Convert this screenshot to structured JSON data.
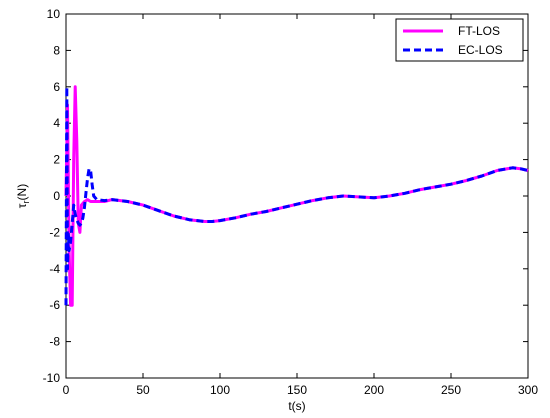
{
  "chart_data": {
    "type": "line",
    "title": "",
    "xlabel": "t(s)",
    "ylabel_main": "τ",
    "ylabel_sub": "r",
    "ylabel_tail": "(N)",
    "xlim": [
      0,
      300
    ],
    "ylim": [
      -10,
      10
    ],
    "xticks": [
      0,
      50,
      100,
      150,
      200,
      250,
      300
    ],
    "yticks": [
      -10,
      -8,
      -6,
      -4,
      -2,
      0,
      2,
      4,
      6,
      8,
      10
    ],
    "grid": false,
    "legend_position": "top-right",
    "series": [
      {
        "name": "FT-LOS",
        "color": "#ff00ff",
        "style": "solid",
        "x": [
          0,
          1,
          2,
          3,
          4,
          5,
          6,
          7,
          8,
          9,
          10,
          12,
          14,
          16,
          20,
          25,
          30,
          40,
          50,
          60,
          70,
          80,
          90,
          95,
          100,
          110,
          120,
          130,
          140,
          150,
          160,
          170,
          180,
          190,
          200,
          210,
          220,
          230,
          240,
          250,
          260,
          270,
          280,
          290,
          295,
          300
        ],
        "y": [
          0,
          5,
          -3,
          -6,
          -6,
          2,
          6,
          3,
          -1.5,
          -2,
          -0.5,
          -0.3,
          -0.2,
          -0.3,
          -0.3,
          -0.3,
          -0.2,
          -0.3,
          -0.5,
          -0.8,
          -1.1,
          -1.3,
          -1.4,
          -1.4,
          -1.35,
          -1.2,
          -1.0,
          -0.85,
          -0.65,
          -0.45,
          -0.25,
          -0.1,
          0,
          -0.05,
          -0.1,
          0,
          0.15,
          0.35,
          0.5,
          0.65,
          0.85,
          1.1,
          1.4,
          1.55,
          1.5,
          1.4
        ]
      },
      {
        "name": "EC-LOS",
        "color": "#0000ff",
        "style": "dashed",
        "x": [
          0,
          0.5,
          1,
          1.5,
          2,
          3,
          4,
          5,
          6,
          7,
          8,
          9,
          10,
          11,
          12,
          13,
          14,
          15,
          16,
          17,
          18,
          20,
          25,
          30,
          40,
          50,
          60,
          70,
          80,
          90,
          95,
          100,
          110,
          120,
          130,
          140,
          150,
          160,
          170,
          180,
          190,
          200,
          210,
          220,
          230,
          240,
          250,
          260,
          270,
          280,
          290,
          295,
          300
        ],
        "y": [
          -6,
          6,
          -4,
          -2,
          -3,
          -2.5,
          -1.5,
          -0.5,
          -1,
          -1.3,
          -1.5,
          -1.6,
          -1.5,
          -1.2,
          -0.6,
          0.2,
          1.0,
          1.5,
          1.4,
          0.6,
          0,
          -0.2,
          -0.25,
          -0.2,
          -0.3,
          -0.5,
          -0.8,
          -1.1,
          -1.3,
          -1.4,
          -1.4,
          -1.35,
          -1.2,
          -1.0,
          -0.85,
          -0.65,
          -0.45,
          -0.25,
          -0.1,
          0,
          -0.05,
          -0.1,
          0,
          0.15,
          0.35,
          0.5,
          0.65,
          0.85,
          1.1,
          1.4,
          1.55,
          1.5,
          1.4
        ]
      }
    ]
  }
}
